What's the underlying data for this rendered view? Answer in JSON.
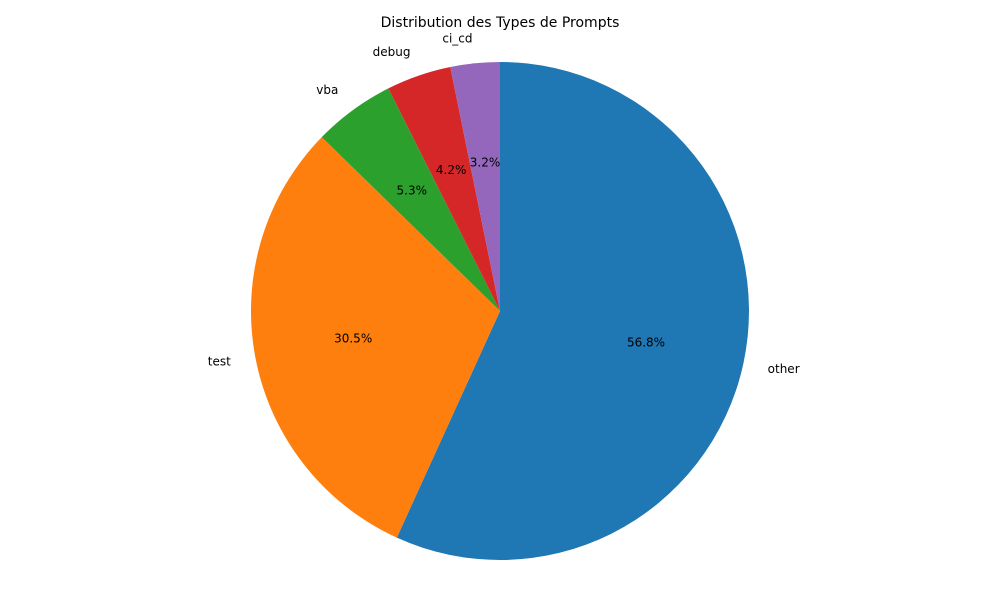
{
  "chart_data": {
    "type": "pie",
    "title": "Distribution des Types de Prompts",
    "start_angle_deg": 90,
    "direction": "clockwise",
    "slices": [
      {
        "label": "other",
        "value": 56.8,
        "pct_label": "56.8%",
        "color": "#1f77b4"
      },
      {
        "label": "test",
        "value": 30.5,
        "pct_label": "30.5%",
        "color": "#ff7f0e"
      },
      {
        "label": "vba",
        "value": 5.3,
        "pct_label": "5.3%",
        "color": "#2ca02c"
      },
      {
        "label": "debug",
        "value": 4.2,
        "pct_label": "4.2%",
        "color": "#d62728"
      },
      {
        "label": "ci_cd",
        "value": 3.2,
        "pct_label": "3.2%",
        "color": "#9467bd"
      }
    ]
  }
}
